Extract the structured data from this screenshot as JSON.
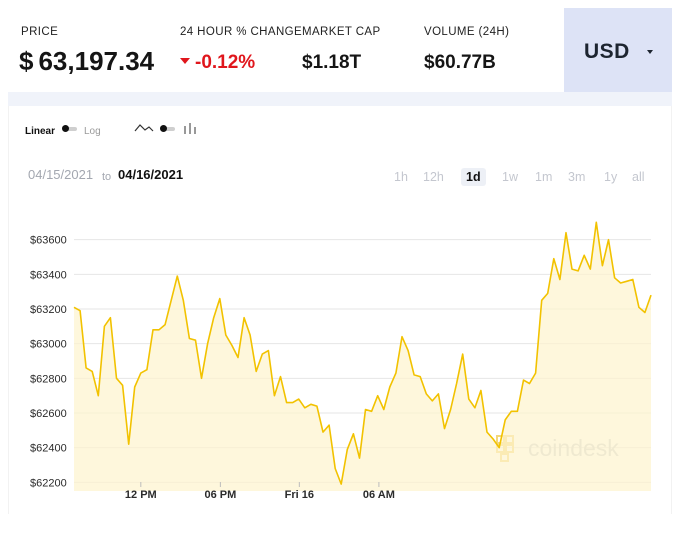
{
  "stats": {
    "price_label": "PRICE",
    "price_symbol": "$",
    "price_value": "63,197.34",
    "change_label": "24 HOUR % CHANGE",
    "change_value": "-0.12%",
    "mcap_label": "MARKET CAP",
    "mcap_value": "$1.18T",
    "volume_label": "VOLUME (24H)",
    "volume_value": "$60.77B"
  },
  "currency": {
    "selected": "USD"
  },
  "controls": {
    "linear_label": "Linear",
    "log_label": "Log",
    "date_from": "04/15/2021",
    "date_sep": "to",
    "date_to": "04/16/2021",
    "ranges": [
      "1h",
      "12h",
      "1d",
      "1w",
      "1m",
      "3m",
      "1y",
      "all"
    ],
    "active_range": "1d"
  },
  "colors": {
    "line": "#f2c200",
    "fill": "#fdf3cd",
    "negative": "#e0161c",
    "currency_box": "#dde3f6"
  },
  "watermark": "coindesk",
  "chart_data": {
    "type": "area",
    "ylim": [
      62150,
      63800
    ],
    "y_ticks": [
      62200,
      62400,
      62600,
      62800,
      63000,
      63200,
      63400,
      63600
    ],
    "y_tick_labels": [
      "$62200",
      "$62400",
      "$62600",
      "$62800",
      "$63000",
      "$63200",
      "$63400",
      "$63600"
    ],
    "x_ticks": [
      {
        "label": "12 PM",
        "at": 11.0
      },
      {
        "label": "06 PM",
        "at": 24.1
      },
      {
        "label": "Fri 16",
        "at": 37.1
      },
      {
        "label": "06 AM",
        "at": 50.2
      }
    ],
    "grid": true,
    "legend": "none",
    "series": [
      {
        "values": [
          63210,
          63190,
          62860,
          62840,
          62700,
          63100,
          63150,
          62800,
          62760,
          62420,
          62750,
          62830,
          62850,
          63080,
          63080,
          63110,
          63250,
          63390,
          63250,
          63030,
          63020,
          62800,
          63000,
          63150,
          63260,
          63050,
          62990,
          62920,
          63150,
          63050,
          62840,
          62940,
          62960,
          62700,
          62810,
          62660,
          62660,
          62680,
          62630,
          62650,
          62640,
          62490,
          62530,
          62280,
          62190,
          62390,
          62480,
          62340,
          62620,
          62610,
          62700,
          62620,
          62750,
          62830,
          63040,
          62960,
          62820,
          62810,
          62710,
          62670,
          62710,
          62510,
          62620,
          62770,
          62940,
          62680,
          62630,
          62730,
          62490,
          62450,
          62400,
          62560,
          62610,
          62610,
          62790,
          62770,
          62830,
          63250,
          63290,
          63490,
          63370,
          63640,
          63430,
          63420,
          63510,
          63430,
          63700,
          63450,
          63600,
          63380,
          63350,
          63360,
          63370,
          63210,
          63180,
          63280
        ]
      }
    ]
  }
}
